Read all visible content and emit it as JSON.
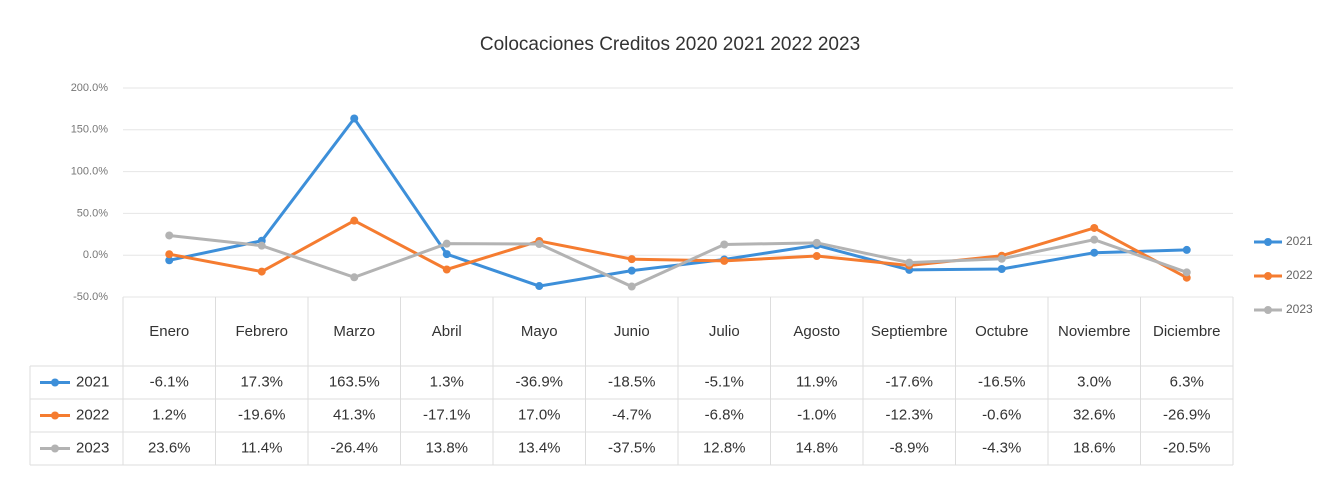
{
  "chart_data": {
    "type": "line",
    "title": "Colocaciones Creditos 2020 2021 2022 2023",
    "categories": [
      "Enero",
      "Febrero",
      "Marzo",
      "Abril",
      "Mayo",
      "Junio",
      "Julio",
      "Agosto",
      "Septiembre",
      "Octubre",
      "Noviembre",
      "Diciembre"
    ],
    "series": [
      {
        "name": "2021",
        "color": "#3d8fd9",
        "values": [
          -6.1,
          17.3,
          163.5,
          1.3,
          -36.9,
          -18.5,
          -5.1,
          11.9,
          -17.6,
          -16.5,
          3.0,
          6.3
        ],
        "value_labels": [
          "-6.1%",
          "17.3%",
          "163.5%",
          "1.3%",
          "-36.9%",
          "-18.5%",
          "-5.1%",
          "11.9%",
          "-17.6%",
          "-16.5%",
          "3.0%",
          "6.3%"
        ]
      },
      {
        "name": "2022",
        "color": "#f57c30",
        "values": [
          1.2,
          -19.6,
          41.3,
          -17.1,
          17.0,
          -4.7,
          -6.8,
          -1.0,
          -12.3,
          -0.6,
          32.6,
          -26.9
        ],
        "value_labels": [
          "1.2%",
          "-19.6%",
          "41.3%",
          "-17.1%",
          "17.0%",
          "-4.7%",
          "-6.8%",
          "-1.0%",
          "-12.3%",
          "-0.6%",
          "32.6%",
          "-26.9%"
        ]
      },
      {
        "name": "2023",
        "color": "#b3b3b3",
        "values": [
          23.6,
          11.4,
          -26.4,
          13.8,
          13.4,
          -37.5,
          12.8,
          14.8,
          -8.9,
          -4.3,
          18.6,
          -20.5
        ],
        "value_labels": [
          "23.6%",
          "11.4%",
          "-26.4%",
          "13.8%",
          "13.4%",
          "-37.5%",
          "12.8%",
          "14.8%",
          "-8.9%",
          "-4.3%",
          "18.6%",
          "-20.5%"
        ]
      }
    ],
    "ylim": [
      -50,
      200
    ],
    "yticks": [
      {
        "value": -50,
        "label": "-50.0%"
      },
      {
        "value": 0,
        "label": "0.0%"
      },
      {
        "value": 50,
        "label": "50.0%"
      },
      {
        "value": 100,
        "label": "100.0%"
      },
      {
        "value": 150,
        "label": "150.0%"
      },
      {
        "value": 200,
        "label": "200.0%"
      }
    ],
    "grid": true,
    "legend": "right"
  }
}
